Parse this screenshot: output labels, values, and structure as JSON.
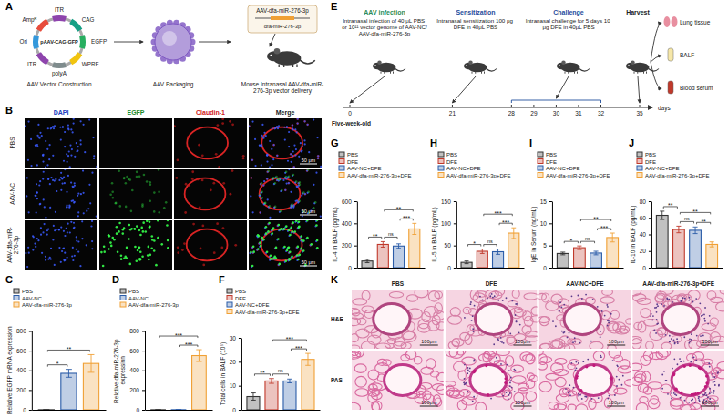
{
  "panel_a": {
    "letter": "A",
    "plasmid_name": "pAAV-CAG-GFP",
    "plasmid_features": [
      "Ampᴿ",
      "ITR",
      "CAG",
      "EGFP",
      "WPRE",
      "polyA",
      "ITR",
      "Ori"
    ],
    "vector_label": "AAV-dfa-miR-276-3p",
    "insert_label": "dfa-miR-276-3p",
    "steps": [
      "AAV Vector Construction",
      "AAV Packaging",
      "Mouse Intranasal AAV-dfa-miR-276-3p vector delivery"
    ]
  },
  "panel_b": {
    "letter": "B",
    "columns": [
      "DAPI",
      "EGFP",
      "Claudin-1",
      "Merge"
    ],
    "rows": [
      "PBS",
      "AAV-NC",
      "AAV-dfa-miR-276-3p"
    ],
    "scale_bar": "50 μm"
  },
  "panel_e": {
    "letter": "E",
    "phases": [
      {
        "title": "AAV infection",
        "text": "Intranasal infection of 40 μL PBS or 10¹¹ vector genome of AAV-NC/AAV-dfa-miR-276-3p"
      },
      {
        "title": "Sensitization",
        "text": "Intranasal sensitization 100 μg DFE in 40μL PBS"
      },
      {
        "title": "Challenge",
        "text": "Intranasal challenge for 5 days 10 μg DFE in 40μL PBS"
      },
      {
        "title": "Harvest"
      }
    ],
    "age": "Five-week-old",
    "days": [
      0,
      21,
      28,
      29,
      30,
      31,
      32,
      35
    ],
    "unit": "days",
    "samples": [
      "Lung tissue",
      "BALF",
      "Blood serum"
    ]
  },
  "panel_k": {
    "letter": "K",
    "columns": [
      "PBS",
      "DFE",
      "AAV-NC+DFE",
      "AAV-dfa-miR-276-3p+DFE"
    ],
    "rows": [
      "H&E",
      "PAS"
    ],
    "scale_bar": "100μm"
  },
  "chart_data": [
    {
      "type": "bar",
      "panel_label": "C",
      "ylabel": "Relative EGFP mRNA expression",
      "categories": [
        "PBS",
        "AAV-NC",
        "AAV-dfa-miR-276-3p"
      ],
      "values": [
        1,
        370,
        470
      ],
      "errors": [
        0.3,
        40,
        90
      ],
      "colors": [
        "#333333",
        "#2b5ca8",
        "#f0a035"
      ],
      "ylim": [
        0,
        800
      ],
      "yticks": [
        0,
        200,
        400,
        600,
        800
      ],
      "tick_labels": "y",
      "legend": "top",
      "annotations": [
        {
          "between": [
            "PBS",
            "AAV-NC"
          ],
          "text": "*"
        },
        {
          "between": [
            "PBS",
            "AAV-dfa-miR-276-3p"
          ],
          "text": "**"
        }
      ]
    },
    {
      "type": "bar",
      "panel_label": "D",
      "ylabel": "Relative dfa-miR-276-3p expression",
      "categories": [
        "PBS",
        "AAV-NC",
        "AAV-dfa-miR-276-3p"
      ],
      "values": [
        1,
        1.2,
        550
      ],
      "errors": [
        0.1,
        0.25,
        60
      ],
      "colors": [
        "#333333",
        "#2b5ca8",
        "#f0a035"
      ],
      "ylim": [
        0,
        800
      ],
      "yticks": [
        0,
        200,
        400,
        600,
        800
      ],
      "tick_labels": "y",
      "legend": "top",
      "annotations": [
        {
          "between": [
            "AAV-NC",
            "AAV-dfa-miR-276-3p"
          ],
          "text": "***"
        },
        {
          "between": [
            "PBS",
            "AAV-dfa-miR-276-3p"
          ],
          "text": "***"
        }
      ]
    },
    {
      "type": "bar",
      "panel_label": "F",
      "ylabel": "Total cells in BALF (10⁵)",
      "categories": [
        "PBS",
        "DFE",
        "AAV-NC+DFE",
        "AAV-dfa-miR-276-3p+DFE"
      ],
      "values": [
        5.5,
        12,
        12,
        21
      ],
      "errors": [
        1.5,
        1,
        0.8,
        2.5
      ],
      "colors": [
        "#333333",
        "#c0392b",
        "#2b5ca8",
        "#f0a035"
      ],
      "ylim": [
        0,
        30
      ],
      "yticks": [
        0,
        10,
        20,
        30
      ],
      "tick_labels": "y",
      "legend": "top",
      "annotations": [
        {
          "between": [
            "PBS",
            "DFE"
          ],
          "text": "**"
        },
        {
          "between": [
            "DFE",
            "AAV-NC+DFE"
          ],
          "text": "ns"
        },
        {
          "between": [
            "AAV-NC+DFE",
            "AAV-dfa-miR-276-3p+DFE"
          ],
          "text": "***"
        },
        {
          "between": [
            "DFE",
            "AAV-dfa-miR-276-3p+DFE"
          ],
          "text": "***"
        }
      ]
    },
    {
      "type": "bar",
      "panel_label": "G",
      "ylabel": "IL-4 in BALF (pg/mL)",
      "categories": [
        "PBS",
        "DFE",
        "AAV-NC+DFE",
        "AAV-dfa-miR-276-3p+DFE"
      ],
      "values": [
        60,
        210,
        195,
        350
      ],
      "errors": [
        15,
        25,
        20,
        50
      ],
      "colors": [
        "#333333",
        "#c0392b",
        "#2b5ca8",
        "#f0a035"
      ],
      "ylim": [
        0,
        600
      ],
      "yticks": [
        0,
        200,
        400,
        600
      ],
      "tick_labels": "y",
      "legend": "top",
      "annotations": [
        {
          "between": [
            "PBS",
            "DFE"
          ],
          "text": "**"
        },
        {
          "between": [
            "DFE",
            "AAV-NC+DFE"
          ],
          "text": "ns"
        },
        {
          "between": [
            "AAV-NC+DFE",
            "AAV-dfa-miR-276-3p+DFE"
          ],
          "text": "***"
        },
        {
          "between": [
            "DFE",
            "AAV-dfa-miR-276-3p+DFE"
          ],
          "text": "**"
        }
      ]
    },
    {
      "type": "bar",
      "panel_label": "H",
      "ylabel": "IL-5 in BALF (pg/mL)",
      "categories": [
        "PBS",
        "DFE",
        "AAV-NC+DFE",
        "AAV-dfa-miR-276-3p+DFE"
      ],
      "values": [
        12,
        37,
        36,
        78
      ],
      "errors": [
        3,
        5,
        6,
        12
      ],
      "colors": [
        "#333333",
        "#c0392b",
        "#2b5ca8",
        "#f0a035"
      ],
      "ylim": [
        0,
        150
      ],
      "yticks": [
        0,
        50,
        100,
        150
      ],
      "tick_labels": "y",
      "legend": "top",
      "annotations": [
        {
          "between": [
            "PBS",
            "DFE"
          ],
          "text": "*"
        },
        {
          "between": [
            "DFE",
            "AAV-NC+DFE"
          ],
          "text": "ns"
        },
        {
          "between": [
            "AAV-NC+DFE",
            "AAV-dfa-miR-276-3p+DFE"
          ],
          "text": "***"
        },
        {
          "between": [
            "DFE",
            "AAV-dfa-miR-276-3p+DFE"
          ],
          "text": "***"
        }
      ]
    },
    {
      "type": "bar",
      "panel_label": "I",
      "ylabel": "IgE in Serum (ng/mL)",
      "categories": [
        "PBS",
        "DFE",
        "AAV-NC+DFE",
        "AAV-dfa-miR-276-3p+DFE"
      ],
      "values": [
        3.2,
        4.5,
        3.3,
        6.8
      ],
      "errors": [
        0.3,
        0.4,
        0.4,
        1
      ],
      "colors": [
        "#333333",
        "#c0392b",
        "#2b5ca8",
        "#f0a035"
      ],
      "ylim": [
        0,
        15
      ],
      "yticks": [
        0,
        5,
        10,
        15
      ],
      "tick_labels": "y",
      "legend": "top",
      "annotations": [
        {
          "between": [
            "PBS",
            "DFE"
          ],
          "text": "*"
        },
        {
          "between": [
            "DFE",
            "AAV-NC+DFE"
          ],
          "text": "ns"
        },
        {
          "between": [
            "AAV-NC+DFE",
            "AAV-dfa-miR-276-3p+DFE"
          ],
          "text": "***"
        },
        {
          "between": [
            "DFE",
            "AAV-dfa-miR-276-3p+DFE"
          ],
          "text": "**"
        }
      ]
    },
    {
      "type": "bar",
      "panel_label": "J",
      "ylabel": "IL-10 in BALF (pg/mL)",
      "categories": [
        "PBS",
        "DFE",
        "AAV-NC+DFE",
        "AAV-dfa-miR-276-3p+DFE"
      ],
      "values": [
        63,
        46,
        45,
        28
      ],
      "errors": [
        5,
        4,
        4,
        3
      ],
      "colors": [
        "#333333",
        "#c0392b",
        "#2b5ca8",
        "#f0a035"
      ],
      "ylim": [
        0,
        80
      ],
      "yticks": [
        0,
        20,
        40,
        60,
        80
      ],
      "tick_labels": "y",
      "legend": "top",
      "annotations": [
        {
          "between": [
            "PBS",
            "DFE"
          ],
          "text": "**"
        },
        {
          "between": [
            "DFE",
            "AAV-NC+DFE"
          ],
          "text": "ns"
        },
        {
          "between": [
            "AAV-NC+DFE",
            "AAV-dfa-miR-276-3p+DFE"
          ],
          "text": "**"
        },
        {
          "between": [
            "DFE",
            "AAV-dfa-miR-276-3p+DFE"
          ],
          "text": "**"
        }
      ]
    }
  ]
}
